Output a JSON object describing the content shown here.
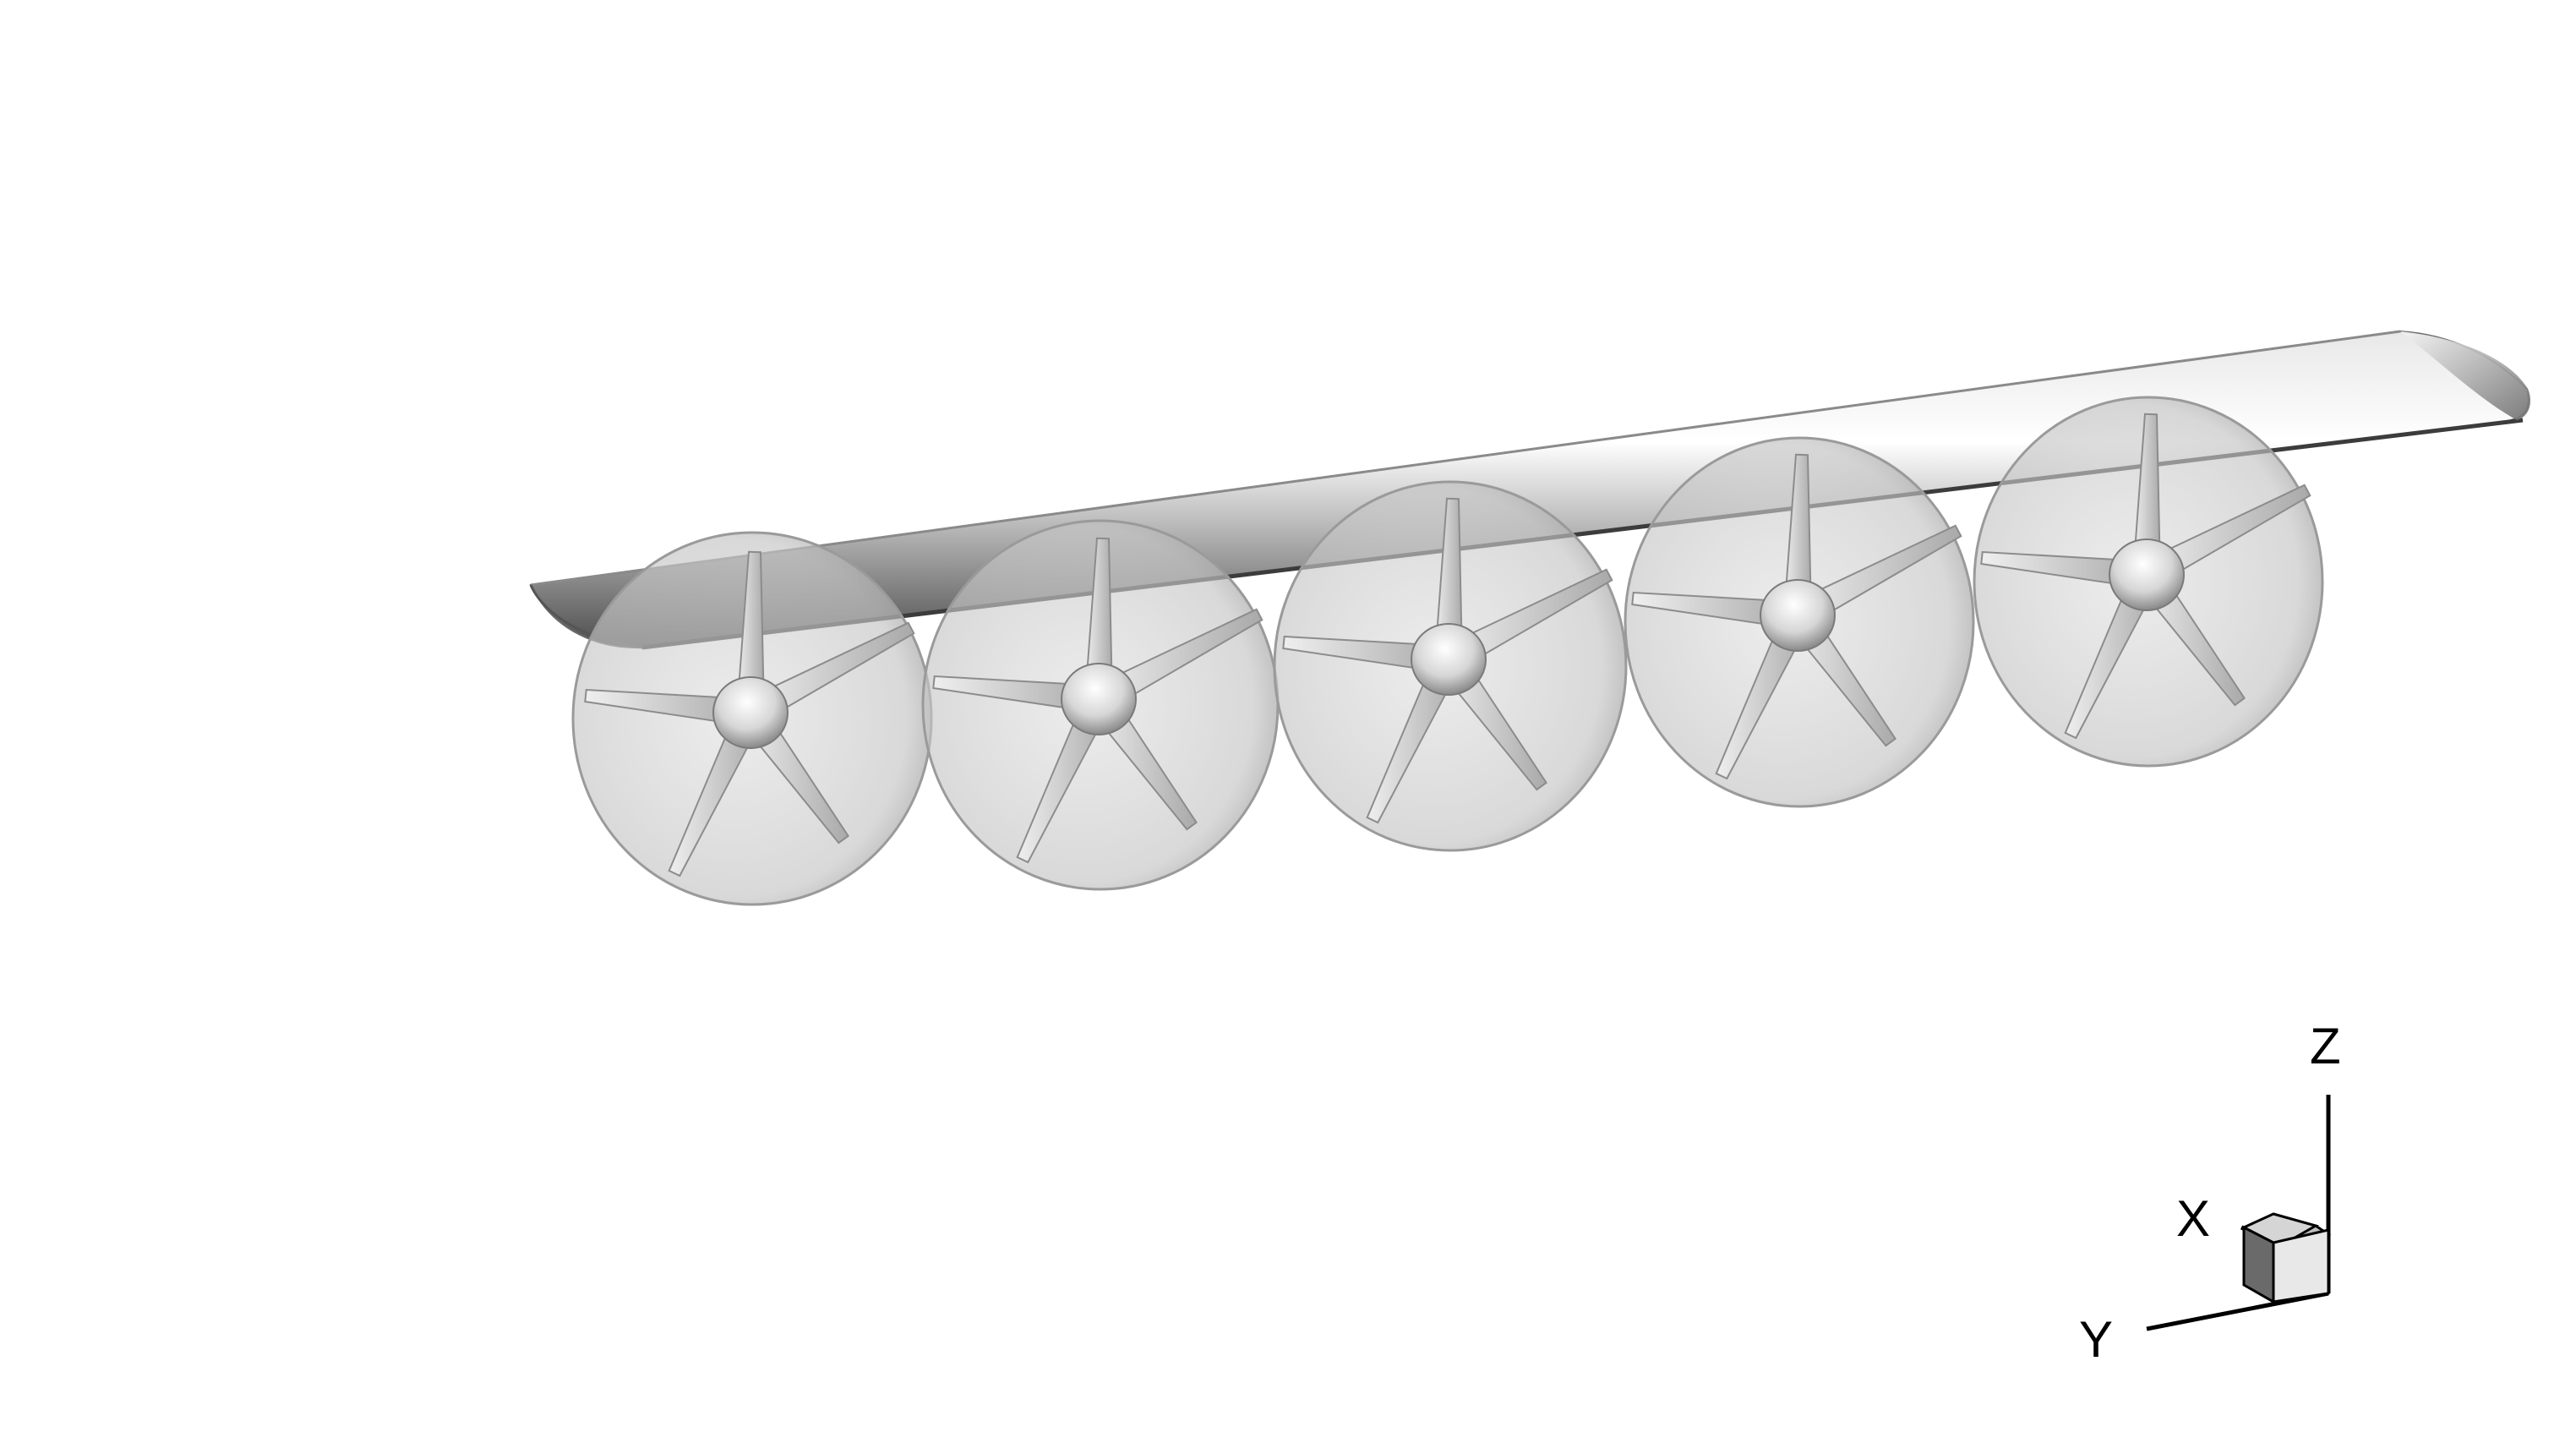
{
  "scene": {
    "description_type": "3d-render",
    "colors": {
      "background": "#ffffff",
      "wing_light": "#f2f2f2",
      "wing_mid": "#b8b8b8",
      "wing_dark": "#5a5a5a",
      "disk_fill": "#c8c8c8",
      "disk_edge": "#9a9a9a",
      "blade": "#d9d9d9",
      "blade_shadow": "#8c8c8c",
      "hub_light": "#fafafa",
      "hub_dark": "#8a8a8a",
      "axis_line": "#000000"
    },
    "wing": {
      "label": "wing"
    },
    "rotors": [
      {
        "id": "rotor-1",
        "blade_count": 5
      },
      {
        "id": "rotor-2",
        "blade_count": 5
      },
      {
        "id": "rotor-3",
        "blade_count": 5
      },
      {
        "id": "rotor-4",
        "blade_count": 5
      },
      {
        "id": "rotor-5",
        "blade_count": 5
      }
    ]
  },
  "axis_triad": {
    "x_label": "X",
    "y_label": "Y",
    "z_label": "Z"
  }
}
